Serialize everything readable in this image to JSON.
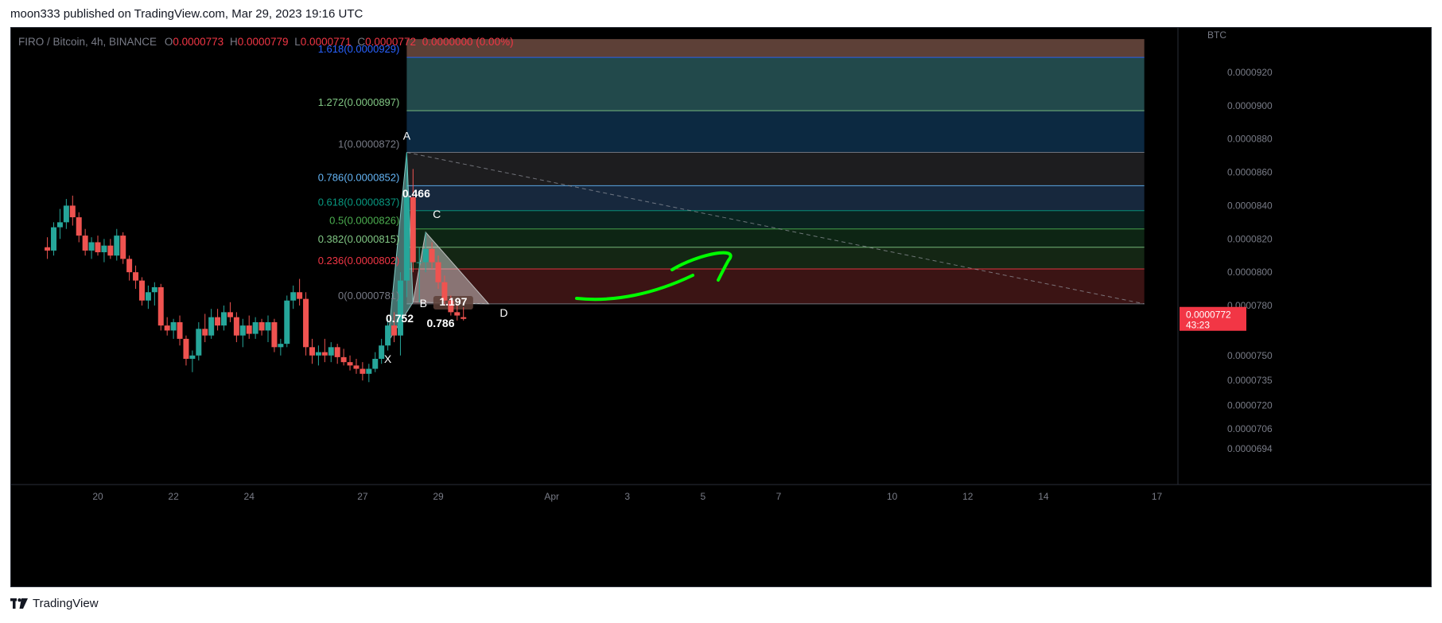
{
  "header": {
    "publisher_line": "moon333 published on TradingView.com, Mar 29, 2023 19:16 UTC"
  },
  "footer": {
    "brand": "TradingView"
  },
  "legend": {
    "symbol": "FIRO / Bitcoin, 4h, BINANCE",
    "o_label": "O",
    "o_value": "0.0000773",
    "h_label": "H",
    "h_value": "0.0000779",
    "l_label": "L",
    "l_value": "0.0000771",
    "c_label": "C",
    "c_value": "0.0000772",
    "change": "0.0000000 (0.00%)"
  },
  "colors": {
    "background": "#000000",
    "up": "#26a69a",
    "down": "#ef5350",
    "price_badge": "#f23645",
    "hand_drawn_arrow": "#00ff00"
  },
  "chart_data": {
    "type": "candlestick",
    "title": "",
    "currency_label": "BTC",
    "y_ticks": [
      "0.0000694",
      "0.0000706",
      "0.0000720",
      "0.0000735",
      "0.0000750",
      "0.0000780",
      "0.0000800",
      "0.0000820",
      "0.0000840",
      "0.0000860",
      "0.0000880",
      "0.0000900",
      "0.0000920"
    ],
    "x_ticks": [
      "20",
      "22",
      "24",
      "27",
      "29",
      "Apr",
      "3",
      "5",
      "7",
      "10",
      "12",
      "14",
      "17"
    ],
    "x_tick_dates": [
      "2023-03-20",
      "2023-03-22",
      "2023-03-24",
      "2023-03-27",
      "2023-03-29",
      "2023-04-01",
      "2023-04-03",
      "2023-04-05",
      "2023-04-07",
      "2023-04-10",
      "2023-04-12",
      "2023-04-14",
      "2023-04-17"
    ],
    "current_price": {
      "price_label": "0.0000772",
      "countdown": "43:23"
    },
    "fib_levels": [
      {
        "label": "1.618(0.0000929)",
        "ratio": 1.618,
        "price": 9.29e-05,
        "color": "#2962ff"
      },
      {
        "label": "1.272(0.0000897)",
        "ratio": 1.272,
        "price": 8.97e-05,
        "color": "#81c784"
      },
      {
        "label": "1(0.0000872)",
        "ratio": 1,
        "price": 8.72e-05,
        "color": "#787b86"
      },
      {
        "label": "0.786(0.0000852)",
        "ratio": 0.786,
        "price": 8.52e-05,
        "color": "#64b5f6"
      },
      {
        "label": "0.618(0.0000837)",
        "ratio": 0.618,
        "price": 8.37e-05,
        "color": "#089981"
      },
      {
        "label": "0.5(0.0000826)",
        "ratio": 0.5,
        "price": 8.26e-05,
        "color": "#4caf50"
      },
      {
        "label": "0.382(0.0000815)",
        "ratio": 0.382,
        "price": 8.15e-05,
        "color": "#81c784"
      },
      {
        "label": "0.236(0.0000802)",
        "ratio": 0.236,
        "price": 8.02e-05,
        "color": "#f23645"
      },
      {
        "label": "0(0.0000781)",
        "ratio": 0,
        "price": 7.81e-05,
        "color": "#787b86"
      }
    ],
    "fib_zones": [
      {
        "top": 9.4e-05,
        "bottom": 9.29e-05,
        "color": "#5d4037"
      },
      {
        "top": 9.29e-05,
        "bottom": 8.97e-05,
        "color": "#22494b"
      },
      {
        "top": 8.97e-05,
        "bottom": 8.72e-05,
        "color": "#0c2941"
      },
      {
        "top": 8.72e-05,
        "bottom": 8.52e-05,
        "color": "#1d1d1f"
      },
      {
        "top": 8.52e-05,
        "bottom": 8.37e-05,
        "color": "#17283d"
      },
      {
        "top": 8.37e-05,
        "bottom": 8.26e-05,
        "color": "#0a2320"
      },
      {
        "top": 8.26e-05,
        "bottom": 8.15e-05,
        "color": "#0d2514"
      },
      {
        "top": 8.15e-05,
        "bottom": 8.02e-05,
        "color": "#142614"
      },
      {
        "top": 8.02e-05,
        "bottom": 7.81e-05,
        "color": "#3b1414"
      }
    ],
    "pattern_points": [
      {
        "label": "X",
        "date": "2023-03-27T16:00",
        "price": 7.58e-05
      },
      {
        "label": "A",
        "date": "2023-03-28T04:00",
        "price": 8.72e-05
      },
      {
        "label": "B",
        "date": "2023-03-28T08:00",
        "price": 7.82e-05
      },
      {
        "label": "C",
        "date": "2023-03-28T16:00",
        "price": 8.24e-05
      },
      {
        "label": "D",
        "date": "2023-03-30T08:00",
        "price": 7.81e-05
      }
    ],
    "pattern_ratios": [
      {
        "label": "0.466",
        "date": "2023-03-28T04:00",
        "price": 8.45e-05
      },
      {
        "label": "0.752",
        "date": "2023-03-27T22:00",
        "price": 7.7e-05
      },
      {
        "label": "0.786",
        "date": "2023-03-29T00:00",
        "price": 7.67e-05
      },
      {
        "label": "1.197",
        "date": "2023-03-29T08:00",
        "price": 7.8e-05
      }
    ],
    "trend_line": {
      "start": {
        "date": "2023-03-28T04:00",
        "price": 8.72e-05
      },
      "end": {
        "date": "2023-04-16T16:00",
        "price": 7.81e-05
      }
    },
    "fib_range": {
      "start_date": "2023-03-28T04:00",
      "end_date": "2023-04-16T16:00"
    },
    "candles": [
      {
        "t": "2023-03-18T16:00",
        "o": 8.15e-05,
        "h": 8.21e-05,
        "l": 8.08e-05,
        "c": 8.13e-05
      },
      {
        "t": "2023-03-18T20:00",
        "o": 8.13e-05,
        "h": 8.3e-05,
        "l": 8.1e-05,
        "c": 8.27e-05
      },
      {
        "t": "2023-03-19T00:00",
        "o": 8.27e-05,
        "h": 8.38e-05,
        "l": 8.2e-05,
        "c": 8.3e-05
      },
      {
        "t": "2023-03-19T04:00",
        "o": 8.3e-05,
        "h": 8.44e-05,
        "l": 8.26e-05,
        "c": 8.4e-05
      },
      {
        "t": "2023-03-19T08:00",
        "o": 8.4e-05,
        "h": 8.46e-05,
        "l": 8.28e-05,
        "c": 8.33e-05
      },
      {
        "t": "2023-03-19T12:00",
        "o": 8.33e-05,
        "h": 8.36e-05,
        "l": 8.18e-05,
        "c": 8.22e-05
      },
      {
        "t": "2023-03-19T16:00",
        "o": 8.22e-05,
        "h": 8.26e-05,
        "l": 8.1e-05,
        "c": 8.13e-05
      },
      {
        "t": "2023-03-19T20:00",
        "o": 8.13e-05,
        "h": 8.21e-05,
        "l": 8.08e-05,
        "c": 8.18e-05
      },
      {
        "t": "2023-03-20T00:00",
        "o": 8.18e-05,
        "h": 8.22e-05,
        "l": 8.1e-05,
        "c": 8.12e-05
      },
      {
        "t": "2023-03-20T04:00",
        "o": 8.12e-05,
        "h": 8.2e-05,
        "l": 8.06e-05,
        "c": 8.16e-05
      },
      {
        "t": "2023-03-20T08:00",
        "o": 8.16e-05,
        "h": 8.2e-05,
        "l": 8.08e-05,
        "c": 8.1e-05
      },
      {
        "t": "2023-03-20T12:00",
        "o": 8.1e-05,
        "h": 8.26e-05,
        "l": 8.07e-05,
        "c": 8.22e-05
      },
      {
        "t": "2023-03-20T16:00",
        "o": 8.22e-05,
        "h": 8.24e-05,
        "l": 8.05e-05,
        "c": 8.08e-05
      },
      {
        "t": "2023-03-20T20:00",
        "o": 8.08e-05,
        "h": 8.1e-05,
        "l": 7.95e-05,
        "c": 8e-05
      },
      {
        "t": "2023-03-21T00:00",
        "o": 8e-05,
        "h": 8.04e-05,
        "l": 7.9e-05,
        "c": 7.95e-05
      },
      {
        "t": "2023-03-21T04:00",
        "o": 7.95e-05,
        "h": 7.97e-05,
        "l": 7.8e-05,
        "c": 7.83e-05
      },
      {
        "t": "2023-03-21T08:00",
        "o": 7.83e-05,
        "h": 7.92e-05,
        "l": 7.78e-05,
        "c": 7.88e-05
      },
      {
        "t": "2023-03-21T12:00",
        "o": 7.88e-05,
        "h": 7.94e-05,
        "l": 7.8e-05,
        "c": 7.91e-05
      },
      {
        "t": "2023-03-21T16:00",
        "o": 7.91e-05,
        "h": 7.93e-05,
        "l": 7.65e-05,
        "c": 7.68e-05
      },
      {
        "t": "2023-03-21T20:00",
        "o": 7.68e-05,
        "h": 7.73e-05,
        "l": 7.62e-05,
        "c": 7.65e-05
      },
      {
        "t": "2023-03-22T00:00",
        "o": 7.65e-05,
        "h": 7.72e-05,
        "l": 7.6e-05,
        "c": 7.7e-05
      },
      {
        "t": "2023-03-22T04:00",
        "o": 7.7e-05,
        "h": 7.74e-05,
        "l": 7.56e-05,
        "c": 7.6e-05
      },
      {
        "t": "2023-03-22T08:00",
        "o": 7.6e-05,
        "h": 7.62e-05,
        "l": 7.44e-05,
        "c": 7.48e-05
      },
      {
        "t": "2023-03-22T12:00",
        "o": 7.48e-05,
        "h": 7.53e-05,
        "l": 7.4e-05,
        "c": 7.5e-05
      },
      {
        "t": "2023-03-22T16:00",
        "o": 7.5e-05,
        "h": 7.7e-05,
        "l": 7.47e-05,
        "c": 7.66e-05
      },
      {
        "t": "2023-03-22T20:00",
        "o": 7.66e-05,
        "h": 7.75e-05,
        "l": 7.58e-05,
        "c": 7.62e-05
      },
      {
        "t": "2023-03-23T00:00",
        "o": 7.62e-05,
        "h": 7.78e-05,
        "l": 7.6e-05,
        "c": 7.73e-05
      },
      {
        "t": "2023-03-23T04:00",
        "o": 7.73e-05,
        "h": 7.78e-05,
        "l": 7.65e-05,
        "c": 7.68e-05
      },
      {
        "t": "2023-03-23T08:00",
        "o": 7.68e-05,
        "h": 7.8e-05,
        "l": 7.65e-05,
        "c": 7.76e-05
      },
      {
        "t": "2023-03-23T12:00",
        "o": 7.76e-05,
        "h": 7.82e-05,
        "l": 7.7e-05,
        "c": 7.73e-05
      },
      {
        "t": "2023-03-23T16:00",
        "o": 7.73e-05,
        "h": 7.76e-05,
        "l": 7.58e-05,
        "c": 7.62e-05
      },
      {
        "t": "2023-03-23T20:00",
        "o": 7.62e-05,
        "h": 7.72e-05,
        "l": 7.55e-05,
        "c": 7.68e-05
      },
      {
        "t": "2023-03-24T00:00",
        "o": 7.68e-05,
        "h": 7.74e-05,
        "l": 7.6e-05,
        "c": 7.63e-05
      },
      {
        "t": "2023-03-24T04:00",
        "o": 7.63e-05,
        "h": 7.73e-05,
        "l": 7.6e-05,
        "c": 7.7e-05
      },
      {
        "t": "2023-03-24T08:00",
        "o": 7.7e-05,
        "h": 7.72e-05,
        "l": 7.62e-05,
        "c": 7.65e-05
      },
      {
        "t": "2023-03-24T12:00",
        "o": 7.65e-05,
        "h": 7.74e-05,
        "l": 7.58e-05,
        "c": 7.7e-05
      },
      {
        "t": "2023-03-24T16:00",
        "o": 7.7e-05,
        "h": 7.72e-05,
        "l": 7.52e-05,
        "c": 7.55e-05
      },
      {
        "t": "2023-03-24T20:00",
        "o": 7.55e-05,
        "h": 7.6e-05,
        "l": 7.5e-05,
        "c": 7.57e-05
      },
      {
        "t": "2023-03-25T00:00",
        "o": 7.57e-05,
        "h": 7.86e-05,
        "l": 7.55e-05,
        "c": 7.83e-05
      },
      {
        "t": "2023-03-25T04:00",
        "o": 7.83e-05,
        "h": 7.92e-05,
        "l": 7.78e-05,
        "c": 7.88e-05
      },
      {
        "t": "2023-03-25T08:00",
        "o": 7.88e-05,
        "h": 7.96e-05,
        "l": 7.8e-05,
        "c": 7.84e-05
      },
      {
        "t": "2023-03-25T12:00",
        "o": 7.84e-05,
        "h": 7.88e-05,
        "l": 7.5e-05,
        "c": 7.55e-05
      },
      {
        "t": "2023-03-25T16:00",
        "o": 7.55e-05,
        "h": 7.6e-05,
        "l": 7.45e-05,
        "c": 7.5e-05
      },
      {
        "t": "2023-03-25T20:00",
        "o": 7.5e-05,
        "h": 7.56e-05,
        "l": 7.44e-05,
        "c": 7.52e-05
      },
      {
        "t": "2023-03-26T00:00",
        "o": 7.52e-05,
        "h": 7.6e-05,
        "l": 7.46e-05,
        "c": 7.5e-05
      },
      {
        "t": "2023-03-26T04:00",
        "o": 7.5e-05,
        "h": 7.58e-05,
        "l": 7.46e-05,
        "c": 7.55e-05
      },
      {
        "t": "2023-03-26T08:00",
        "o": 7.55e-05,
        "h": 7.57e-05,
        "l": 7.45e-05,
        "c": 7.49e-05
      },
      {
        "t": "2023-03-26T12:00",
        "o": 7.49e-05,
        "h": 7.54e-05,
        "l": 7.44e-05,
        "c": 7.46e-05
      },
      {
        "t": "2023-03-26T16:00",
        "o": 7.46e-05,
        "h": 7.5e-05,
        "l": 7.41e-05,
        "c": 7.44e-05
      },
      {
        "t": "2023-03-26T20:00",
        "o": 7.44e-05,
        "h": 7.48e-05,
        "l": 7.39e-05,
        "c": 7.42e-05
      },
      {
        "t": "2023-03-27T00:00",
        "o": 7.42e-05,
        "h": 7.46e-05,
        "l": 7.35e-05,
        "c": 7.39e-05
      },
      {
        "t": "2023-03-27T04:00",
        "o": 7.39e-05,
        "h": 7.45e-05,
        "l": 7.34e-05,
        "c": 7.42e-05
      },
      {
        "t": "2023-03-27T08:00",
        "o": 7.42e-05,
        "h": 7.52e-05,
        "l": 7.4e-05,
        "c": 7.48e-05
      },
      {
        "t": "2023-03-27T12:00",
        "o": 7.48e-05,
        "h": 7.6e-05,
        "l": 7.45e-05,
        "c": 7.56e-05
      },
      {
        "t": "2023-03-27T16:00",
        "o": 7.56e-05,
        "h": 7.72e-05,
        "l": 7.53e-05,
        "c": 7.68e-05
      },
      {
        "t": "2023-03-27T20:00",
        "o": 7.68e-05,
        "h": 7.76e-05,
        "l": 7.58e-05,
        "c": 7.62e-05
      },
      {
        "t": "2023-03-28T00:00",
        "o": 7.62e-05,
        "h": 8e-05,
        "l": 7.5e-05,
        "c": 7.95e-05
      },
      {
        "t": "2023-03-28T04:00",
        "o": 7.95e-05,
        "h": 8.72e-05,
        "l": 7.85e-05,
        "c": 8.45e-05
      },
      {
        "t": "2023-03-28T08:00",
        "o": 8.45e-05,
        "h": 8.62e-05,
        "l": 8e-05,
        "c": 8.06e-05
      },
      {
        "t": "2023-03-28T12:00",
        "o": 8.06e-05,
        "h": 8.15e-05,
        "l": 7.82e-05,
        "c": 8.06e-05
      },
      {
        "t": "2023-03-28T16:00",
        "o": 8.06e-05,
        "h": 8.24e-05,
        "l": 8e-05,
        "c": 8.14e-05
      },
      {
        "t": "2023-03-28T20:00",
        "o": 8.14e-05,
        "h": 8.18e-05,
        "l": 8.02e-05,
        "c": 8.06e-05
      },
      {
        "t": "2023-03-29T00:00",
        "o": 8.06e-05,
        "h": 8.1e-05,
        "l": 7.9e-05,
        "c": 7.94e-05
      },
      {
        "t": "2023-03-29T04:00",
        "o": 7.94e-05,
        "h": 7.98e-05,
        "l": 7.8e-05,
        "c": 7.83e-05
      },
      {
        "t": "2023-03-29T08:00",
        "o": 7.83e-05,
        "h": 7.86e-05,
        "l": 7.74e-05,
        "c": 7.76e-05
      },
      {
        "t": "2023-03-29T12:00",
        "o": 7.76e-05,
        "h": 7.81e-05,
        "l": 7.71e-05,
        "c": 7.74e-05
      },
      {
        "t": "2023-03-29T16:00",
        "o": 7.73e-05,
        "h": 7.79e-05,
        "l": 7.71e-05,
        "c": 7.72e-05
      }
    ]
  }
}
